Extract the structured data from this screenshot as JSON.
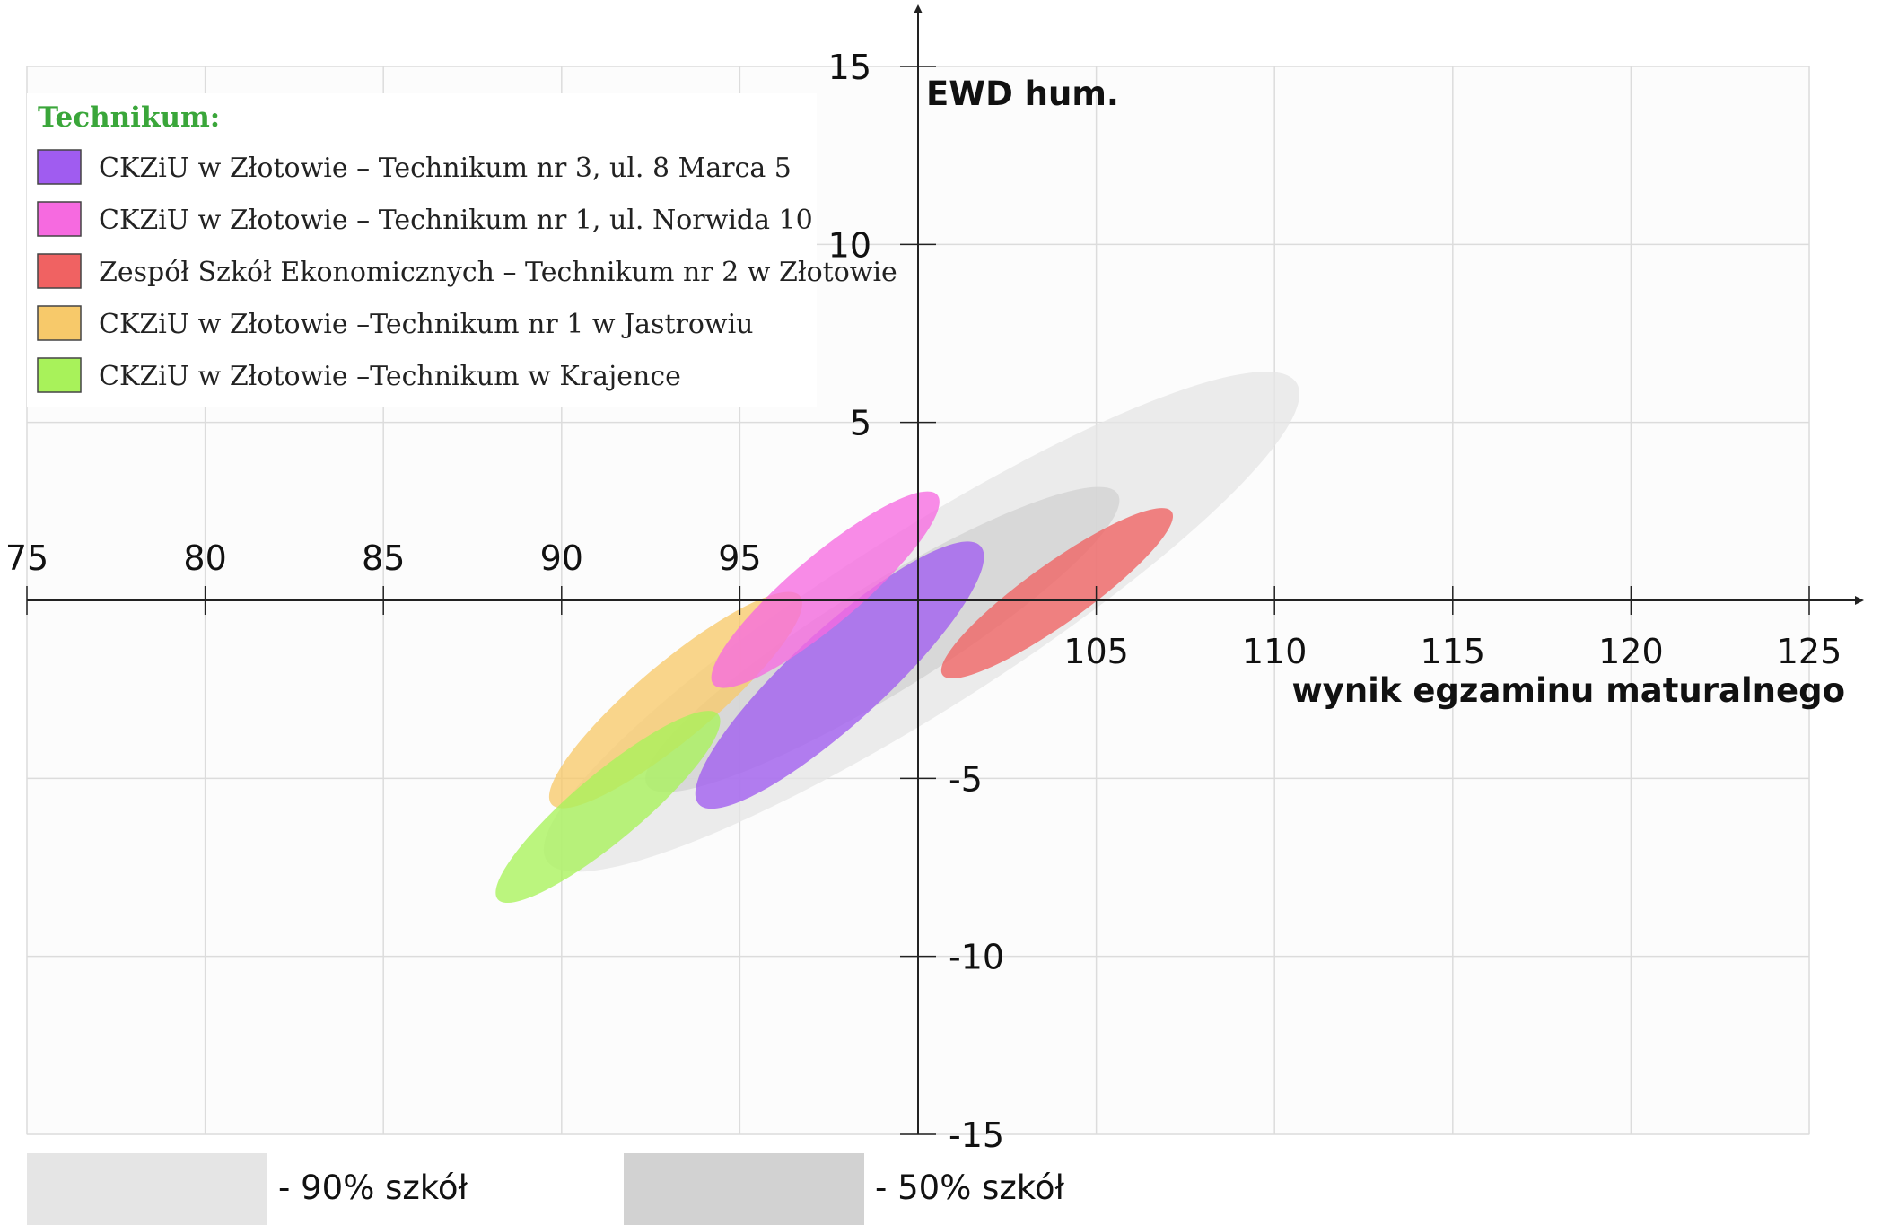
{
  "chart_data": {
    "type": "scatter",
    "ylabel": "EWD hum.",
    "xlabel": "wynik egzaminu maturalnego",
    "xlim": [
      75,
      125
    ],
    "ylim": [
      -15,
      15
    ],
    "x_ticks": [
      "75",
      "80",
      "85",
      "90",
      "95",
      "105",
      "110",
      "115",
      "120",
      "125"
    ],
    "y_ticks": [
      "15",
      "10",
      "5",
      "-5",
      "-10",
      "-15"
    ],
    "grid": true,
    "legend_title": "Technikum:",
    "legend_placement": "top-left",
    "series": [
      {
        "name": "CKZiU w Złotowie – Technikum nr 3, ul. 8 Marca 5",
        "color": "#a05cf0",
        "ellipse": {
          "center": [
            97.8,
            -2.1
          ],
          "x_range": [
            94.5,
            102.6
          ],
          "y_range": [
            -4.7,
            2.8
          ]
        }
      },
      {
        "name": "CKZiU w Złotowie – Technikum nr 1, ul. Norwida 10",
        "color": "#f66ae0",
        "ellipse": {
          "center": [
            97.4,
            0.3
          ],
          "x_range": [
            93.6,
            100.0
          ],
          "y_range": [
            -2.8,
            2.7
          ]
        }
      },
      {
        "name": "Zespół Szkół Ekonomicznych – Technikum nr 2 w Złotowie",
        "color": "#f06262",
        "ellipse": {
          "center": [
            103.9,
            0.2
          ],
          "x_range": [
            100.8,
            107.3
          ],
          "y_range": [
            -1.6,
            3.2
          ]
        }
      },
      {
        "name": "CKZiU w Złotowie –Technikum nr 1 w Jastrowiu",
        "color": "#f7c96a",
        "ellipse": {
          "center": [
            93.2,
            -2.8
          ],
          "x_range": [
            89.9,
            97.0
          ],
          "y_range": [
            -5.5,
            0.6
          ]
        }
      },
      {
        "name": "CKZiU w Złotowie –Technikum w Krajence",
        "color": "#a8f25a",
        "ellipse": {
          "center": [
            91.3,
            -5.8
          ],
          "x_range": [
            88.4,
            94.7
          ],
          "y_range": [
            -8.4,
            -3.0
          ]
        }
      }
    ],
    "bands": [
      {
        "label": "- 90% szkół",
        "color": "#e5e5e5",
        "ellipse": {
          "center": [
            100.1,
            -0.6
          ],
          "x_range": [
            89.5,
            110.7
          ],
          "y_range": [
            -7.0,
            7.1
          ]
        }
      },
      {
        "label": "- 50% szkół",
        "color": "#d2d2d2",
        "ellipse": {
          "center": [
            99.0,
            -1.1
          ],
          "x_range": [
            92.6,
            105.9
          ],
          "y_range": [
            -4.7,
            3.9
          ]
        }
      }
    ]
  }
}
